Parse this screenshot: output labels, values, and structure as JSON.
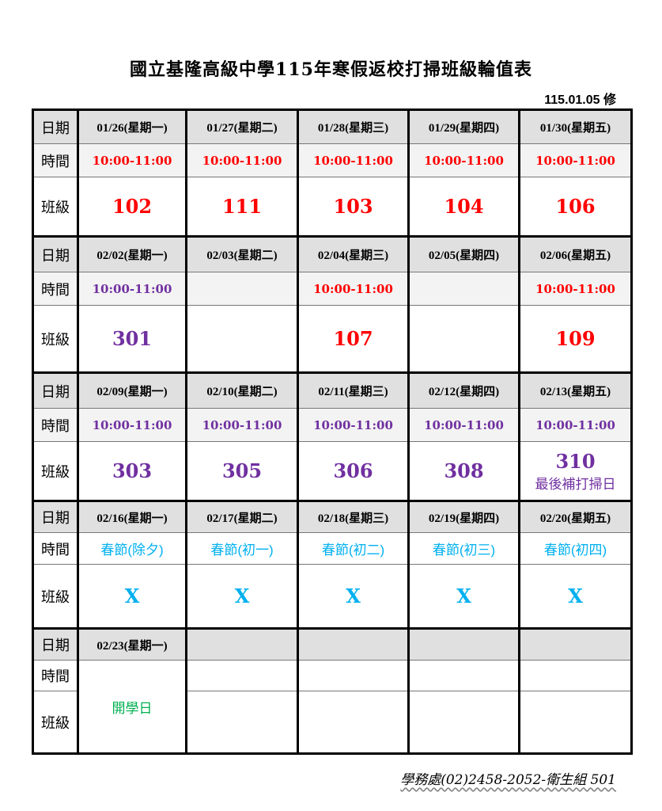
{
  "title": "國立基隆高級中學115年寒假返校打掃班級輪值表",
  "revision": "115.01.05 修",
  "row_labels": {
    "date": "日期",
    "time": "時間",
    "class": "班級"
  },
  "colors": {
    "red": "#ff0000",
    "purple": "#7030a0",
    "cyan": "#00b0f0",
    "green": "#00b050"
  },
  "weeks": [
    {
      "days": [
        {
          "date": "01/26(星期一)",
          "time": "10:00-11:00",
          "class": "102",
          "color": "#ff0000"
        },
        {
          "date": "01/27(星期二)",
          "time": "10:00-11:00",
          "class": "111",
          "color": "#ff0000"
        },
        {
          "date": "01/28(星期三)",
          "time": "10:00-11:00",
          "class": "103",
          "color": "#ff0000"
        },
        {
          "date": "01/29(星期四)",
          "time": "10:00-11:00",
          "class": "104",
          "color": "#ff0000"
        },
        {
          "date": "01/30(星期五)",
          "time": "10:00-11:00",
          "class": "106",
          "color": "#ff0000"
        }
      ]
    },
    {
      "days": [
        {
          "date": "02/02(星期一)",
          "time": "10:00-11:00",
          "class": "301",
          "color": "#7030a0"
        },
        {
          "date": "02/03(星期二)",
          "time": "",
          "class": "",
          "color": "#000000"
        },
        {
          "date": "02/04(星期三)",
          "time": "10:00-11:00",
          "class": "107",
          "color": "#ff0000"
        },
        {
          "date": "02/05(星期四)",
          "time": "",
          "class": "",
          "color": "#000000"
        },
        {
          "date": "02/06(星期五)",
          "time": "10:00-11:00",
          "class": "109",
          "color": "#ff0000"
        }
      ]
    },
    {
      "days": [
        {
          "date": "02/09(星期一)",
          "time": "10:00-11:00",
          "class": "303",
          "color": "#7030a0"
        },
        {
          "date": "02/10(星期二)",
          "time": "10:00-11:00",
          "class": "305",
          "color": "#7030a0"
        },
        {
          "date": "02/11(星期三)",
          "time": "10:00-11:00",
          "class": "306",
          "color": "#7030a0"
        },
        {
          "date": "02/12(星期四)",
          "time": "10:00-11:00",
          "class": "308",
          "color": "#7030a0"
        },
        {
          "date": "02/13(星期五)",
          "time": "10:00-11:00",
          "class": "310",
          "note": "最後補打掃日",
          "color": "#7030a0"
        }
      ]
    },
    {
      "days": [
        {
          "date": "02/16(星期一)",
          "time": "春節(除夕)",
          "class": "X",
          "color": "#00b0f0"
        },
        {
          "date": "02/17(星期二)",
          "time": "春節(初一)",
          "class": "X",
          "color": "#00b0f0"
        },
        {
          "date": "02/18(星期三)",
          "time": "春節(初二)",
          "class": "X",
          "color": "#00b0f0"
        },
        {
          "date": "02/19(星期四)",
          "time": "春節(初三)",
          "class": "X",
          "color": "#00b0f0"
        },
        {
          "date": "02/20(星期五)",
          "time": "春節(初四)",
          "class": "X",
          "color": "#00b0f0"
        }
      ]
    }
  ],
  "last_week": {
    "date": "02/23(星期一)",
    "note": "開學日",
    "color": "#00b050"
  },
  "footer": "學務處(02)2458-2052-衛生組 501"
}
